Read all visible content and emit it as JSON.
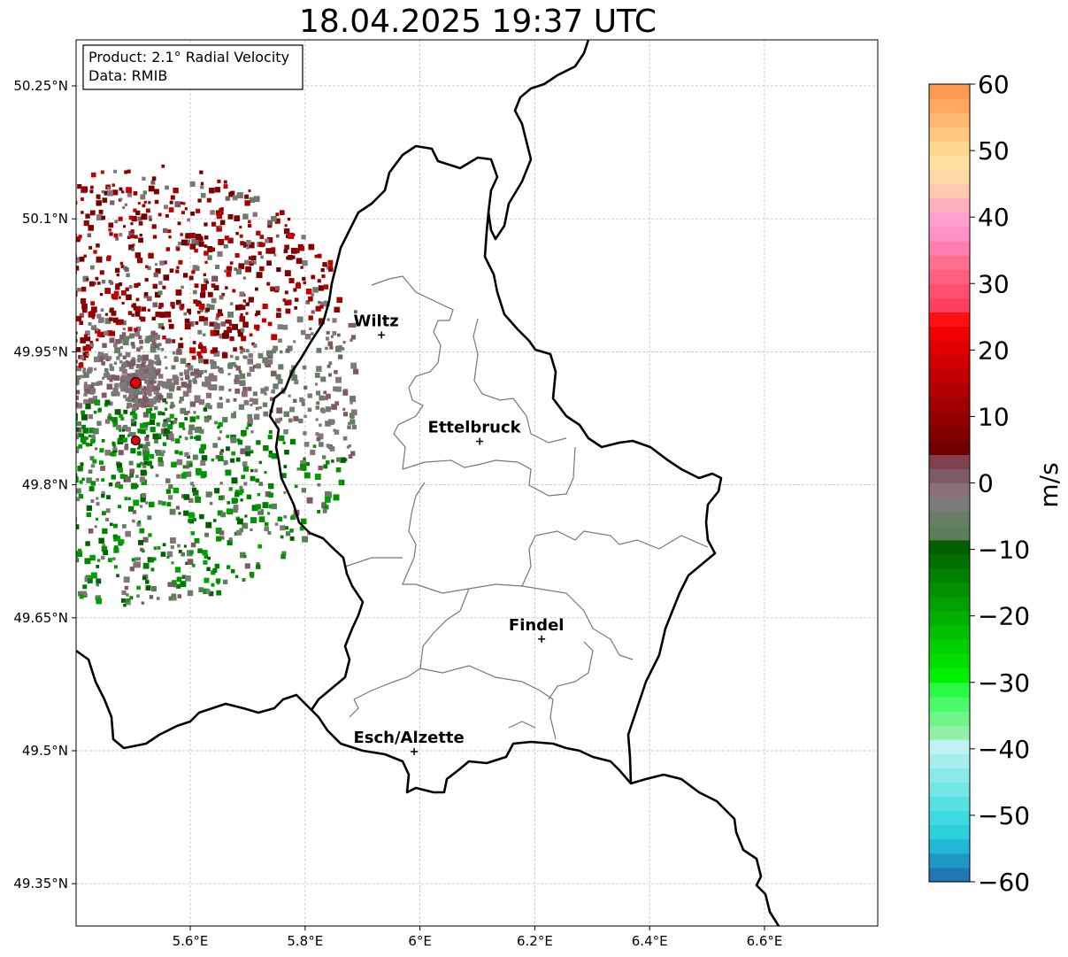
{
  "title": "18.04.2025 19:37 UTC",
  "info": {
    "product": "Product: 2.1° Radial Velocity",
    "data": "Data: RMIB"
  },
  "map": {
    "lon_range": [
      5.4,
      6.8
    ],
    "lat_range": [
      49.3,
      50.3
    ],
    "lon_ticks": [
      {
        "value": 5.6,
        "label": "5.6°E"
      },
      {
        "value": 5.8,
        "label": "5.8°E"
      },
      {
        "value": 6.0,
        "label": "6°E"
      },
      {
        "value": 6.2,
        "label": "6.2°E"
      },
      {
        "value": 6.4,
        "label": "6.4°E"
      },
      {
        "value": 6.6,
        "label": "6.6°E"
      }
    ],
    "lat_ticks": [
      {
        "value": 49.35,
        "label": "49.35°N"
      },
      {
        "value": 49.5,
        "label": "49.5°N"
      },
      {
        "value": 49.65,
        "label": "49.65°N"
      },
      {
        "value": 49.8,
        "label": "49.8°N"
      },
      {
        "value": 49.95,
        "label": "49.95°N"
      },
      {
        "value": 50.1,
        "label": "50.1°N"
      },
      {
        "value": 50.25,
        "label": "50.25°N"
      }
    ],
    "gridlines": true,
    "cities": [
      {
        "name": "Wiltz",
        "lon": 5.933,
        "lat": 49.969
      },
      {
        "name": "Ettelbruck",
        "lon": 6.104,
        "lat": 49.849
      },
      {
        "name": "Findel",
        "lon": 6.212,
        "lat": 49.626
      },
      {
        "name": "Esch/Alzette",
        "lon": 5.99,
        "lat": 49.499
      }
    ],
    "radar_sites": [
      {
        "lon": 5.505,
        "lat": 49.915
      },
      {
        "lon": 5.505,
        "lat": 49.85
      }
    ]
  },
  "colorbar": {
    "min": -60,
    "max": 60,
    "ticks": [
      {
        "value": 60,
        "label": "60"
      },
      {
        "value": 50,
        "label": "50"
      },
      {
        "value": 40,
        "label": "40"
      },
      {
        "value": 30,
        "label": "30"
      },
      {
        "value": 20,
        "label": "20"
      },
      {
        "value": 10,
        "label": "10"
      },
      {
        "value": 0,
        "label": "0"
      },
      {
        "value": -10,
        "label": "−10"
      },
      {
        "value": -20,
        "label": "−20"
      },
      {
        "value": -30,
        "label": "−30"
      },
      {
        "value": -40,
        "label": "−40"
      },
      {
        "value": -50,
        "label": "−50"
      },
      {
        "value": -60,
        "label": "−60"
      }
    ],
    "unit": "m/s",
    "colors": [
      "#1f77b4",
      "#1f97c4",
      "#22b7d4",
      "#2ad0da",
      "#3ddbe0",
      "#58e0e3",
      "#72e6e6",
      "#8ce9e9",
      "#a6eeee",
      "#bff2f2",
      "#90f0a8",
      "#6ef58a",
      "#4cf86c",
      "#28fa46",
      "#00f000",
      "#00e000",
      "#00d000",
      "#00c000",
      "#00b000",
      "#00a000",
      "#009000",
      "#008000",
      "#007000",
      "#006000",
      "#5a7d5a",
      "#667e66",
      "#7b7b7b",
      "#8a7078",
      "#7e5a66",
      "#804050",
      "#700000",
      "#800000",
      "#900000",
      "#a00000",
      "#b00000",
      "#c00000",
      "#d00000",
      "#e00000",
      "#f00000",
      "#ff1010",
      "#ff4060",
      "#ff5070",
      "#ff6080",
      "#ff7090",
      "#ff80b0",
      "#ff90c8",
      "#ffa0d0",
      "#ffb0c0",
      "#ffc8b0",
      "#ffd8a8",
      "#ffe0a0",
      "#ffd890",
      "#ffc880",
      "#ffb870",
      "#ffa860",
      "#ff9850"
    ]
  }
}
